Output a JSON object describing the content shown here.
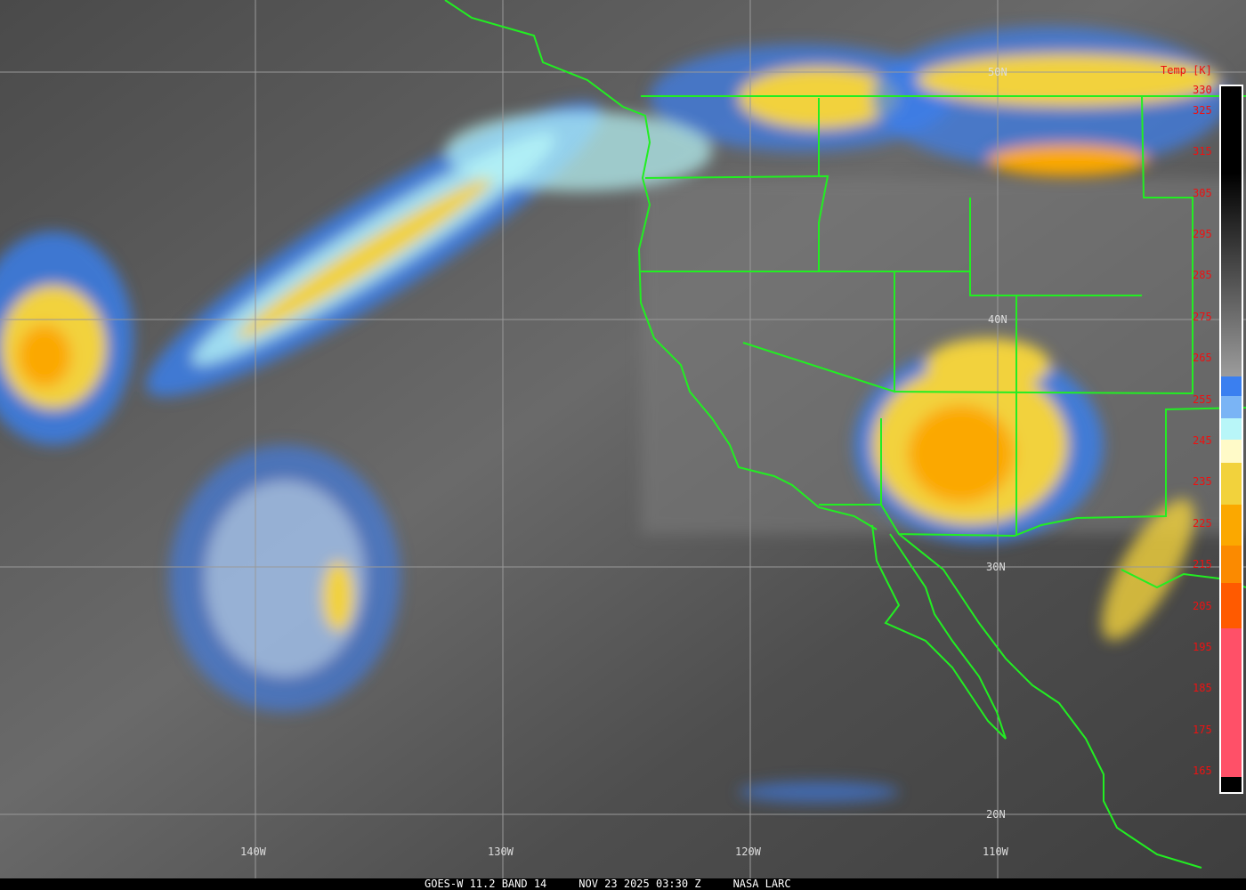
{
  "caption": {
    "satellite": "GOES-W 11.2 BAND 14",
    "datetime": "NOV 23 2025 03:30 Z",
    "source": "NASA LARC"
  },
  "colorbar": {
    "title": "Temp [K]",
    "ticks": [
      "330",
      "325",
      "315",
      "305",
      "295",
      "285",
      "275",
      "265",
      "255",
      "245",
      "235",
      "225",
      "215",
      "205",
      "195",
      "185",
      "175",
      "165"
    ],
    "colors": {
      "cold_blue": "#3a7ff0",
      "light_blue": "#7ab4f5",
      "cyan": "#b8f6f8",
      "pale_yellow": "#fffac8",
      "yellow": "#f2d23c",
      "orange": "#fba800",
      "dark_orange": "#fb8a00",
      "red_orange": "#ff5a00",
      "pink": "#ff5068"
    }
  },
  "grid": {
    "longitudes": [
      "140W",
      "130W",
      "120W",
      "110W"
    ],
    "latitudes": [
      "50N",
      "40N",
      "30N",
      "20N"
    ]
  },
  "overlay_color": "#22ee22"
}
